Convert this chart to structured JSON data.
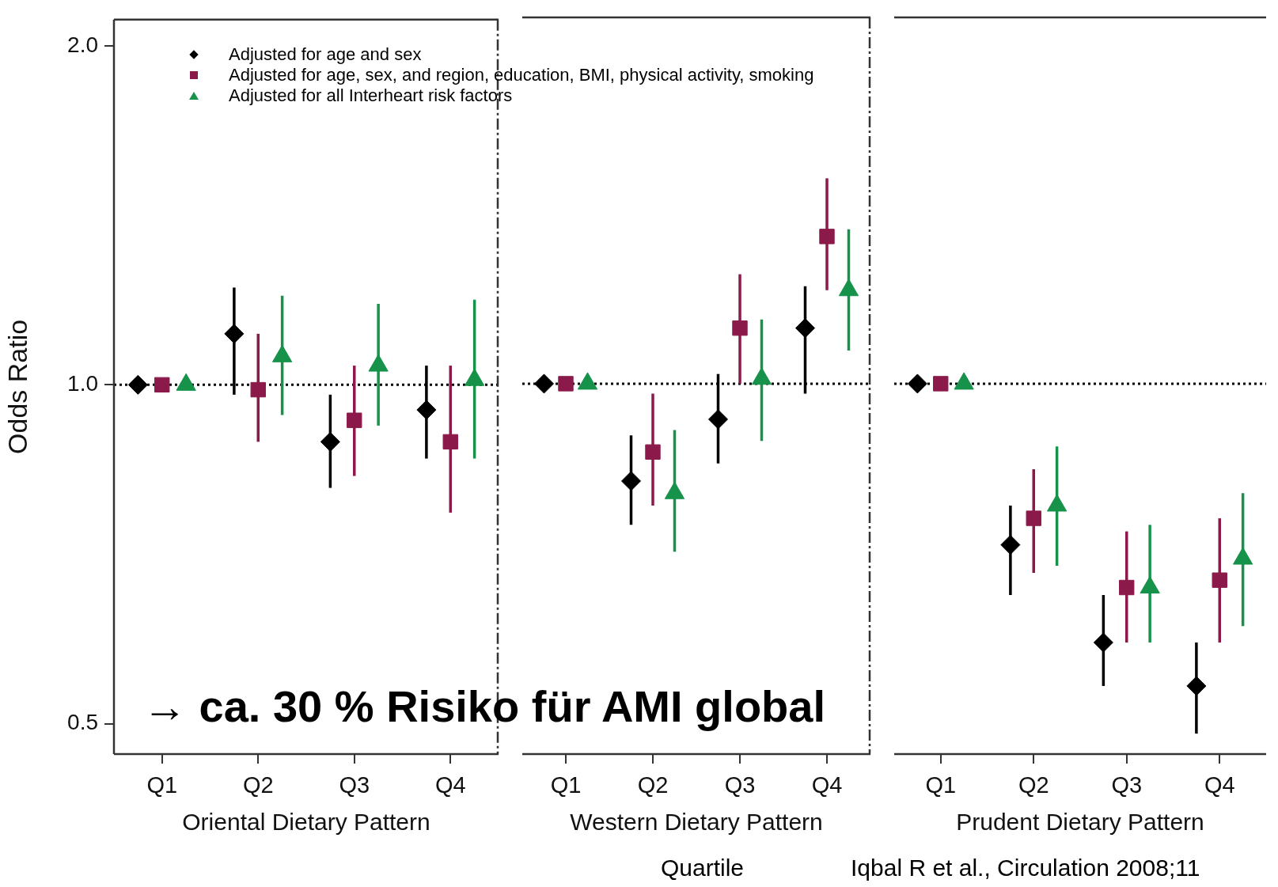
{
  "chart_data": [
    {
      "type": "scatter",
      "ylabel": "Odds Ratio",
      "xlabel": "Oriental Dietary Pattern",
      "categories": [
        "Q1",
        "Q2",
        "Q3",
        "Q4"
      ],
      "log": "y",
      "ylim": [
        0.47,
        2.11
      ],
      "yticks": [
        {
          "value": 0.5,
          "label": "0.5"
        },
        {
          "value": 1,
          "label": "1.0"
        },
        {
          "value": 2,
          "label": "2.0"
        }
      ],
      "grid": false,
      "legend": "top",
      "tick_labels": "xy",
      "ref_lines": [
        {
          "axis": "y",
          "value": 1,
          "line_style": "dotted",
          "color": "#000000"
        }
      ],
      "annotations": [
        "→ ca. 30 % Risiko für AMI global"
      ],
      "series": [
        {
          "name": "Adjusted for age and sex",
          "color": "#000000",
          "marker": "diamond",
          "values": [
            1,
            1.11,
            0.89,
            0.95
          ],
          "errors": [
            null,
            [
              0.98,
              1.22
            ],
            [
              0.81,
              0.98
            ],
            [
              0.86,
              1.04
            ]
          ]
        },
        {
          "name": "Adjusted for age, sex, and region, education, BMI, physical activity, smoking",
          "color": "#8b1a4a",
          "marker": "square",
          "values": [
            1,
            0.99,
            0.93,
            0.89
          ],
          "errors": [
            null,
            [
              0.89,
              1.11
            ],
            [
              0.83,
              1.04
            ],
            [
              0.77,
              1.04
            ]
          ]
        },
        {
          "name": "Adjusted for all Interheart risk factors",
          "color": "#16924a",
          "marker": "triangle",
          "values": [
            1,
            1.06,
            1.04,
            1.01
          ],
          "errors": [
            null,
            [
              0.94,
              1.2
            ],
            [
              0.92,
              1.18
            ],
            [
              0.86,
              1.19
            ]
          ]
        }
      ]
    },
    {
      "type": "scatter",
      "xlabel": "Western Dietary Pattern",
      "categories": [
        "Q1",
        "Q2",
        "Q3",
        "Q4"
      ],
      "log": "y",
      "ylim": [
        0.47,
        2.11
      ],
      "grid": false,
      "tick_labels": "x",
      "ref_lines": [
        {
          "axis": "y",
          "value": 1,
          "line_style": "dotted",
          "color": "#000000"
        }
      ],
      "annotations": [
        "Quartile"
      ],
      "series": [
        {
          "color": "#000000",
          "marker": "diamond",
          "values": [
            1,
            0.82,
            0.93,
            1.12
          ],
          "errors": [
            null,
            [
              0.75,
              0.9
            ],
            [
              0.85,
              1.02
            ],
            [
              0.98,
              1.22
            ]
          ]
        },
        {
          "color": "#8b1a4a",
          "marker": "square",
          "values": [
            1,
            0.87,
            1.12,
            1.35
          ],
          "errors": [
            null,
            [
              0.78,
              0.98
            ],
            [
              1,
              1.25
            ],
            [
              1.21,
              1.52
            ]
          ]
        },
        {
          "color": "#16924a",
          "marker": "triangle",
          "values": [
            1,
            0.8,
            1.01,
            1.21
          ],
          "errors": [
            null,
            [
              0.71,
              0.91
            ],
            [
              0.89,
              1.14
            ],
            [
              1.07,
              1.37
            ]
          ]
        }
      ]
    },
    {
      "type": "scatter",
      "xlabel": "Prudent Dietary Pattern",
      "categories": [
        "Q1",
        "Q2",
        "Q3",
        "Q4"
      ],
      "log": "y",
      "ylim": [
        0.47,
        2.11
      ],
      "grid": false,
      "tick_labels": "x",
      "ref_lines": [
        {
          "axis": "y",
          "value": 1,
          "line_style": "dotted",
          "color": "#000000"
        }
      ],
      "annotations": [
        "Iqbal R et al., Circulation 2008;11"
      ],
      "series": [
        {
          "color": "#000000",
          "marker": "diamond",
          "values": [
            1,
            0.72,
            0.59,
            0.54
          ],
          "errors": [
            null,
            [
              0.65,
              0.78
            ],
            [
              0.54,
              0.65
            ],
            [
              0.49,
              0.59
            ]
          ]
        },
        {
          "color": "#8b1a4a",
          "marker": "square",
          "values": [
            1,
            0.76,
            0.66,
            0.67
          ],
          "errors": [
            null,
            [
              0.68,
              0.84
            ],
            [
              0.59,
              0.74
            ],
            [
              0.59,
              0.76
            ]
          ]
        },
        {
          "color": "#16924a",
          "marker": "triangle",
          "values": [
            1,
            0.78,
            0.66,
            0.7
          ],
          "errors": [
            null,
            [
              0.69,
              0.88
            ],
            [
              0.59,
              0.75
            ],
            [
              0.61,
              0.8
            ]
          ]
        }
      ]
    }
  ]
}
